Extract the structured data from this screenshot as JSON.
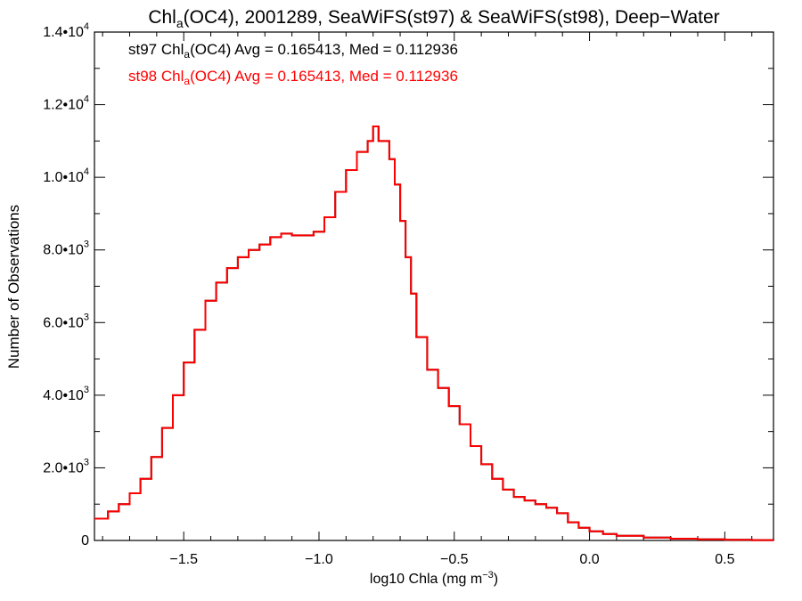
{
  "chart_data": {
    "type": "line",
    "title": {
      "prefix": "Chl",
      "subscript": "a",
      "rest": "(OC4), 2001289, SeaWiFS(st97) & SeaWiFS(st98), Deep−Water"
    },
    "xlabel": {
      "text": "log10 Chla (mg m",
      "superscript": "−3",
      "close": ")"
    },
    "ylabel": "Number of Observations",
    "xlim": [
      -1.83,
      0.68
    ],
    "ylim": [
      0,
      14000
    ],
    "x_ticks": [
      {
        "value": -1.5,
        "label": "−1.5"
      },
      {
        "value": -1.0,
        "label": "−1.0"
      },
      {
        "value": -0.5,
        "label": "−0.5"
      },
      {
        "value": 0.0,
        "label": "0.0"
      },
      {
        "value": 0.5,
        "label": "0.5"
      }
    ],
    "y_ticks": [
      {
        "value": 0,
        "mantissa": "0",
        "exponent": ""
      },
      {
        "value": 2000,
        "mantissa": "2.0•10",
        "exponent": "3"
      },
      {
        "value": 4000,
        "mantissa": "4.0•10",
        "exponent": "3"
      },
      {
        "value": 6000,
        "mantissa": "6.0•10",
        "exponent": "3"
      },
      {
        "value": 8000,
        "mantissa": "8.0•10",
        "exponent": "3"
      },
      {
        "value": 10000,
        "mantissa": "1.0•10",
        "exponent": "4"
      },
      {
        "value": 12000,
        "mantissa": "1.2•10",
        "exponent": "4"
      },
      {
        "value": 14000,
        "mantissa": "1.4•10",
        "exponent": "4"
      }
    ],
    "grid": false,
    "annotations": [
      {
        "id": "st97",
        "color": "#000000",
        "prefix": "st97 Chl",
        "subscript": "a",
        "rest": "(OC4) Avg = 0.165413, Med = 0.112936"
      },
      {
        "id": "st98",
        "color": "#ff0000",
        "prefix": "st98 Chl",
        "subscript": "a",
        "rest": "(OC4) Avg = 0.165413, Med = 0.112936"
      }
    ],
    "series_shape": "identical histograms (st98 drawn over st97)",
    "series": [
      {
        "color": "#000000",
        "points": [
          [
            -1.83,
            600
          ],
          [
            -1.78,
            800
          ],
          [
            -1.74,
            1000
          ],
          [
            -1.7,
            1300
          ],
          [
            -1.66,
            1700
          ],
          [
            -1.62,
            2300
          ],
          [
            -1.58,
            3100
          ],
          [
            -1.54,
            4000
          ],
          [
            -1.5,
            4900
          ],
          [
            -1.46,
            5800
          ],
          [
            -1.42,
            6600
          ],
          [
            -1.38,
            7100
          ],
          [
            -1.34,
            7500
          ],
          [
            -1.3,
            7800
          ],
          [
            -1.26,
            8000
          ],
          [
            -1.22,
            8150
          ],
          [
            -1.18,
            8350
          ],
          [
            -1.14,
            8450
          ],
          [
            -1.1,
            8400
          ],
          [
            -1.06,
            8400
          ],
          [
            -1.02,
            8500
          ],
          [
            -0.98,
            8900
          ],
          [
            -0.94,
            9600
          ],
          [
            -0.9,
            10200
          ],
          [
            -0.86,
            10700
          ],
          [
            -0.82,
            11000
          ],
          [
            -0.8,
            11400
          ],
          [
            -0.78,
            11000
          ],
          [
            -0.74,
            10500
          ],
          [
            -0.72,
            9800
          ],
          [
            -0.7,
            8800
          ],
          [
            -0.68,
            7800
          ],
          [
            -0.66,
            6800
          ],
          [
            -0.64,
            5600
          ],
          [
            -0.6,
            4700
          ],
          [
            -0.56,
            4200
          ],
          [
            -0.52,
            3700
          ],
          [
            -0.48,
            3200
          ],
          [
            -0.44,
            2600
          ],
          [
            -0.4,
            2100
          ],
          [
            -0.36,
            1700
          ],
          [
            -0.32,
            1400
          ],
          [
            -0.28,
            1200
          ],
          [
            -0.24,
            1100
          ],
          [
            -0.2,
            1000
          ],
          [
            -0.16,
            900
          ],
          [
            -0.12,
            750
          ],
          [
            -0.08,
            500
          ],
          [
            -0.04,
            350
          ],
          [
            0.0,
            250
          ],
          [
            0.05,
            180
          ],
          [
            0.1,
            130
          ],
          [
            0.2,
            80
          ],
          [
            0.3,
            50
          ],
          [
            0.4,
            30
          ],
          [
            0.5,
            20
          ],
          [
            0.6,
            10
          ],
          [
            0.68,
            5
          ]
        ]
      },
      {
        "color": "#ff0000",
        "points": [
          [
            -1.83,
            600
          ],
          [
            -1.78,
            800
          ],
          [
            -1.74,
            1000
          ],
          [
            -1.7,
            1300
          ],
          [
            -1.66,
            1700
          ],
          [
            -1.62,
            2300
          ],
          [
            -1.58,
            3100
          ],
          [
            -1.54,
            4000
          ],
          [
            -1.5,
            4900
          ],
          [
            -1.46,
            5800
          ],
          [
            -1.42,
            6600
          ],
          [
            -1.38,
            7100
          ],
          [
            -1.34,
            7500
          ],
          [
            -1.3,
            7800
          ],
          [
            -1.26,
            8000
          ],
          [
            -1.22,
            8150
          ],
          [
            -1.18,
            8350
          ],
          [
            -1.14,
            8450
          ],
          [
            -1.1,
            8400
          ],
          [
            -1.06,
            8400
          ],
          [
            -1.02,
            8500
          ],
          [
            -0.98,
            8900
          ],
          [
            -0.94,
            9600
          ],
          [
            -0.9,
            10200
          ],
          [
            -0.86,
            10700
          ],
          [
            -0.82,
            11000
          ],
          [
            -0.8,
            11400
          ],
          [
            -0.78,
            11000
          ],
          [
            -0.74,
            10500
          ],
          [
            -0.72,
            9800
          ],
          [
            -0.7,
            8800
          ],
          [
            -0.68,
            7800
          ],
          [
            -0.66,
            6800
          ],
          [
            -0.64,
            5600
          ],
          [
            -0.6,
            4700
          ],
          [
            -0.56,
            4200
          ],
          [
            -0.52,
            3700
          ],
          [
            -0.48,
            3200
          ],
          [
            -0.44,
            2600
          ],
          [
            -0.4,
            2100
          ],
          [
            -0.36,
            1700
          ],
          [
            -0.32,
            1400
          ],
          [
            -0.28,
            1200
          ],
          [
            -0.24,
            1100
          ],
          [
            -0.2,
            1000
          ],
          [
            -0.16,
            900
          ],
          [
            -0.12,
            750
          ],
          [
            -0.08,
            500
          ],
          [
            -0.04,
            350
          ],
          [
            0.0,
            250
          ],
          [
            0.05,
            180
          ],
          [
            0.1,
            130
          ],
          [
            0.2,
            80
          ],
          [
            0.3,
            50
          ],
          [
            0.4,
            30
          ],
          [
            0.5,
            20
          ],
          [
            0.6,
            10
          ],
          [
            0.68,
            5
          ]
        ]
      }
    ]
  }
}
